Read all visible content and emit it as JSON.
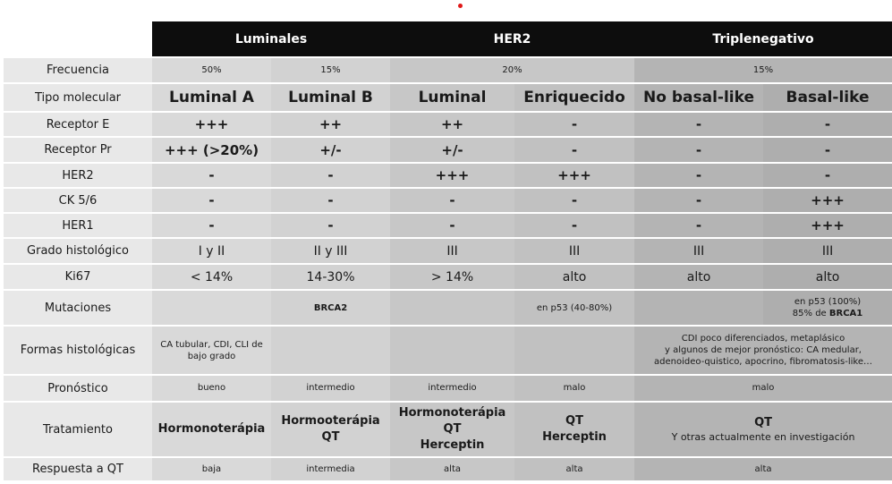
{
  "groups": {
    "luminales": "Luminales",
    "her2": "HER2",
    "triple": "Triplenegativo"
  },
  "labels": [
    "Frecuencia",
    "Tipo molecular",
    "Receptor E",
    "Receptor Pr",
    "HER2",
    "CK 5/6",
    "HER1",
    "Grado histológico",
    "Ki67",
    "Mutaciones",
    "Formas histológicas",
    "Pronóstico",
    "Tratamiento",
    "Respuesta a QT"
  ],
  "frecuencia": {
    "lum_a": "50%",
    "lum_b": "15%",
    "her2": "20%",
    "triple": "15%"
  },
  "tipo": {
    "lum_a": "Luminal A",
    "lum_b": "Luminal B",
    "her2_lum": "Luminal",
    "her2_enr": "Enriquecido",
    "tn_nb": "No basal-like",
    "tn_b": "Basal-like"
  },
  "rec_e": [
    "+++",
    "++",
    "++",
    "-",
    "-",
    "-"
  ],
  "rec_pr": [
    "+++ (>20%)",
    "+/-",
    "+/-",
    "-",
    "-",
    "-"
  ],
  "her2": [
    "-",
    "-",
    "+++",
    "+++",
    "-",
    "-"
  ],
  "ck56": [
    "-",
    "-",
    "-",
    "-",
    "-",
    "+++"
  ],
  "her1": [
    "-",
    "-",
    "-",
    "-",
    "-",
    "+++"
  ],
  "grado": [
    "I y II",
    "II y III",
    "III",
    "III",
    "III",
    "III"
  ],
  "ki67": [
    "< 14%",
    "14-30%",
    "> 14%",
    "alto",
    "alto",
    "alto"
  ],
  "mutaciones": {
    "lum_b": "BRCA2",
    "her2_enr": "en p53 (40-80%)",
    "tn_b_line1": "en p53 (100%)",
    "tn_b_line2_prefix": "85% de ",
    "tn_b_line2_bold": "BRCA1"
  },
  "formas": {
    "lum_a_line1": "CA tubular, CDI, CLI de",
    "lum_a_line2": "bajo grado",
    "tn_line1": "CDI poco diferenciados, metaplásico",
    "tn_line2": "y algunos de mejor pronóstico: CA medular,",
    "tn_line3": "adenoideo-quistico, apocrino, fibromatosis-like…"
  },
  "pronostico": {
    "lum_a": "bueno",
    "lum_b": "intermedio",
    "her2_lum": "intermedio",
    "her2_enr": "malo",
    "triple": "malo"
  },
  "tratamiento": {
    "lum_a": "Hormonoterápia",
    "lum_b_l1": "Hormooterápia",
    "lum_b_l2": "QT",
    "her2_lum_l1": "Hormonoterápia",
    "her2_lum_l2": "QT",
    "her2_lum_l3": "Herceptin",
    "her2_enr_l1": "QT",
    "her2_enr_l2": "Herceptin",
    "tn_l1": "QT",
    "tn_l2": "Y otras actualmente en investigación"
  },
  "respuesta": {
    "lum_a": "baja",
    "lum_b": "intermedia",
    "her2_lum": "alta",
    "her2_enr": "alta",
    "triple": "alta"
  }
}
